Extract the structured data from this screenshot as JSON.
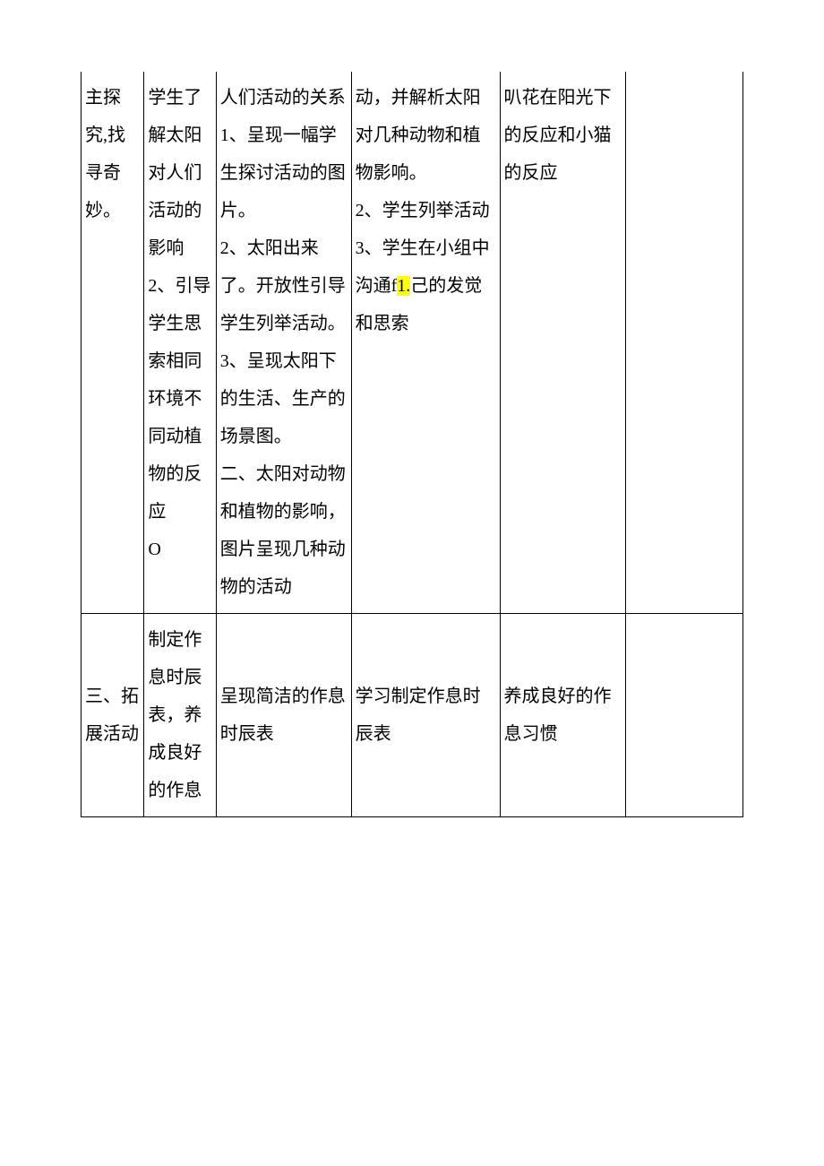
{
  "table": {
    "font_size": 20,
    "line_height": 2.1,
    "border_color": "#000000",
    "background_color": "#ffffff",
    "text_color": "#000000",
    "highlight_color": "#ffff00",
    "columns": [
      {
        "width": 70
      },
      {
        "width": 80
      },
      {
        "width": 150
      },
      {
        "width": 165
      },
      {
        "width": 140
      },
      {
        "width": 130
      }
    ],
    "rows": [
      {
        "cells": [
          "主探究,找寻奇妙。",
          "学生了解太阳对人们活动的影响\n2、引导学生思索相同环境不同动植物的反应\nO",
          "人们活动的关系1、呈现一幅学生探讨活动的图片。\n2、太阳出来了。开放性引导学生列举活动。\n3、呈现太阳下的生活、生产的场景图。\n二、太阳对动物和植物的影响，图片呈现几种动物的活动",
          "动，并解析太阳对几种动物和植物影响。\n2、学生列举活动\n3、学生在小组中沟通f1.己的发觉和思索",
          "叭花在阳光下的反应和小猫的反应",
          ""
        ],
        "highlight": {
          "cell": 3,
          "text": "1."
        }
      },
      {
        "cells": [
          "三、拓展活动",
          "制定作息时辰表，养成良好的作息",
          "呈现简洁的作息时辰表",
          "学习制定作息时辰表",
          "养成良好的作息习惯",
          ""
        ]
      }
    ]
  }
}
